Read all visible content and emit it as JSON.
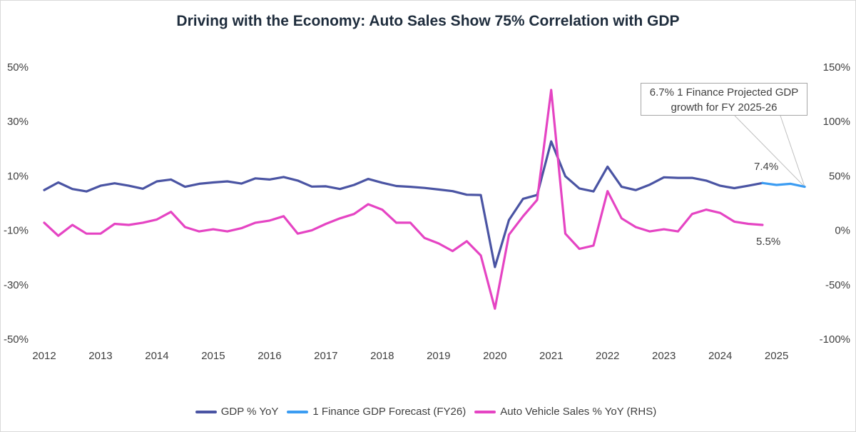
{
  "chart_data": {
    "type": "line",
    "title": "Driving with the Economy: Auto Sales Show 75% Correlation with GDP",
    "x_tick_labels": [
      "2012",
      "2013",
      "2014",
      "2015",
      "2016",
      "2017",
      "2018",
      "2019",
      "2020",
      "2021",
      "2022",
      "2023",
      "2024",
      "2025"
    ],
    "y_left_ticks": [
      "50%",
      "30%",
      "10%",
      "-10%",
      "-30%",
      "-50%"
    ],
    "y_right_ticks": [
      "150%",
      "100%",
      "50%",
      "0%",
      "-50%",
      "-100%"
    ],
    "ylim_left": [
      -50,
      50
    ],
    "ylim_right": [
      -100,
      150
    ],
    "legend_position": "bottom",
    "grid": false,
    "series": [
      {
        "name": "GDP % YoY",
        "axis": "left",
        "color": "#4a54a3",
        "x": [
          2012,
          2012.25,
          2012.5,
          2012.75,
          2013,
          2013.25,
          2013.5,
          2013.75,
          2014,
          2014.25,
          2014.5,
          2014.75,
          2015,
          2015.25,
          2015.5,
          2015.75,
          2016,
          2016.25,
          2016.5,
          2016.75,
          2017,
          2017.25,
          2017.5,
          2017.75,
          2018,
          2018.25,
          2018.5,
          2018.75,
          2019,
          2019.25,
          2019.5,
          2019.75,
          2020,
          2020.25,
          2020.5,
          2020.75,
          2021,
          2021.25,
          2021.5,
          2021.75,
          2022,
          2022.25,
          2022.5,
          2022.75,
          2023,
          2023.25,
          2023.5,
          2023.75,
          2024,
          2024.25,
          2024.5,
          2024.75
        ],
        "values": [
          4.8,
          7.6,
          5.2,
          4.3,
          6.4,
          7.3,
          6.4,
          5.3,
          8.0,
          8.7,
          6.0,
          7.1,
          7.6,
          8.0,
          7.2,
          9.1,
          8.7,
          9.6,
          8.3,
          6.1,
          6.2,
          5.2,
          6.7,
          8.9,
          7.5,
          6.3,
          6.0,
          5.6,
          5.0,
          4.4,
          3.1,
          3.0,
          -23.5,
          -6.2,
          1.6,
          3.0,
          22.7,
          9.9,
          5.4,
          4.3,
          13.4,
          6.0,
          4.8,
          6.8,
          9.5,
          9.3,
          9.3,
          8.3,
          6.4,
          5.5,
          6.4,
          7.4
        ]
      },
      {
        "name": "1 Finance GDP Forecast (FY26)",
        "axis": "left",
        "color": "#3b9cf2",
        "x": [
          2024.75,
          2025,
          2025.25,
          2025.5
        ],
        "values": [
          7.4,
          6.7,
          7.1,
          6.0
        ]
      },
      {
        "name": "Auto Vehicle Sales % YoY (RHS)",
        "axis": "right",
        "color": "#e544c3",
        "x": [
          2012,
          2012.25,
          2012.5,
          2012.75,
          2013,
          2013.25,
          2013.5,
          2013.75,
          2014,
          2014.25,
          2014.5,
          2014.75,
          2015,
          2015.25,
          2015.5,
          2015.75,
          2016,
          2016.25,
          2016.5,
          2016.75,
          2017,
          2017.25,
          2017.5,
          2017.75,
          2018,
          2018.25,
          2018.5,
          2018.75,
          2019,
          2019.25,
          2019.5,
          2019.75,
          2020,
          2020.25,
          2020.5,
          2020.75,
          2021,
          2021.25,
          2021.5,
          2021.75,
          2022,
          2022.25,
          2022.5,
          2022.75,
          2023,
          2023.25,
          2023.5,
          2023.75,
          2024,
          2024.25,
          2024.5,
          2024.75
        ],
        "values": [
          7,
          -5,
          5,
          -3,
          -3,
          6,
          5,
          7,
          10,
          17,
          3,
          -1,
          1,
          -1,
          2,
          7,
          9,
          13,
          -3,
          0,
          6,
          11,
          15,
          24,
          19,
          7,
          7,
          -7,
          -12,
          -19,
          -10,
          -23,
          -72,
          -4,
          13,
          28,
          129,
          -3,
          -17,
          -14,
          36,
          11,
          3,
          -1,
          1,
          -1,
          15,
          19,
          16,
          8,
          6,
          5
        ]
      }
    ],
    "annotations": [
      {
        "text_line1": "6.7% 1 Finance Projected GDP",
        "text_line2": "growth for FY 2025-26"
      },
      {
        "text": "7.4%"
      },
      {
        "text": "5.5%"
      }
    ]
  }
}
